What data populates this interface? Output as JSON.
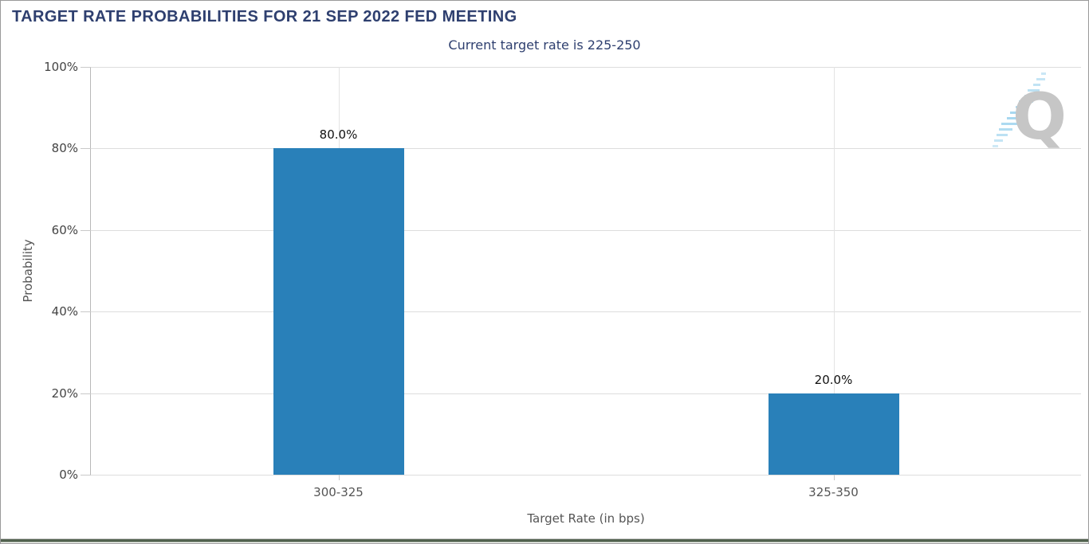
{
  "title": "TARGET RATE PROBABILITIES FOR 21 SEP 2022 FED MEETING",
  "subtitle": "Current target rate is 225-250",
  "watermark": "Q",
  "colors": {
    "bar": "#2980b9",
    "title_text": "#2e3f6f",
    "axis_text": "#555555",
    "tick_text": "#444444",
    "value_text": "#111111",
    "gridline": "#dddddd",
    "watermark_q": "#c6c6c6",
    "watermark_hash": "#9fd4ee"
  },
  "chart_data": {
    "type": "bar",
    "title": "TARGET RATE PROBABILITIES FOR 21 SEP 2022 FED MEETING",
    "subtitle": "Current target rate is 225-250",
    "categories": [
      "300-325",
      "325-350"
    ],
    "values": [
      80.0,
      20.0
    ],
    "value_labels": [
      "80.0%",
      "20.0%"
    ],
    "xlabel": "Target Rate (in bps)",
    "ylabel": "Probability",
    "ylim": [
      0,
      100
    ],
    "yticks": [
      0,
      20,
      40,
      60,
      80,
      100
    ],
    "ytick_labels": [
      "0%",
      "20%",
      "40%",
      "60%",
      "80%",
      "100%"
    ],
    "grid": true,
    "legend": false
  }
}
